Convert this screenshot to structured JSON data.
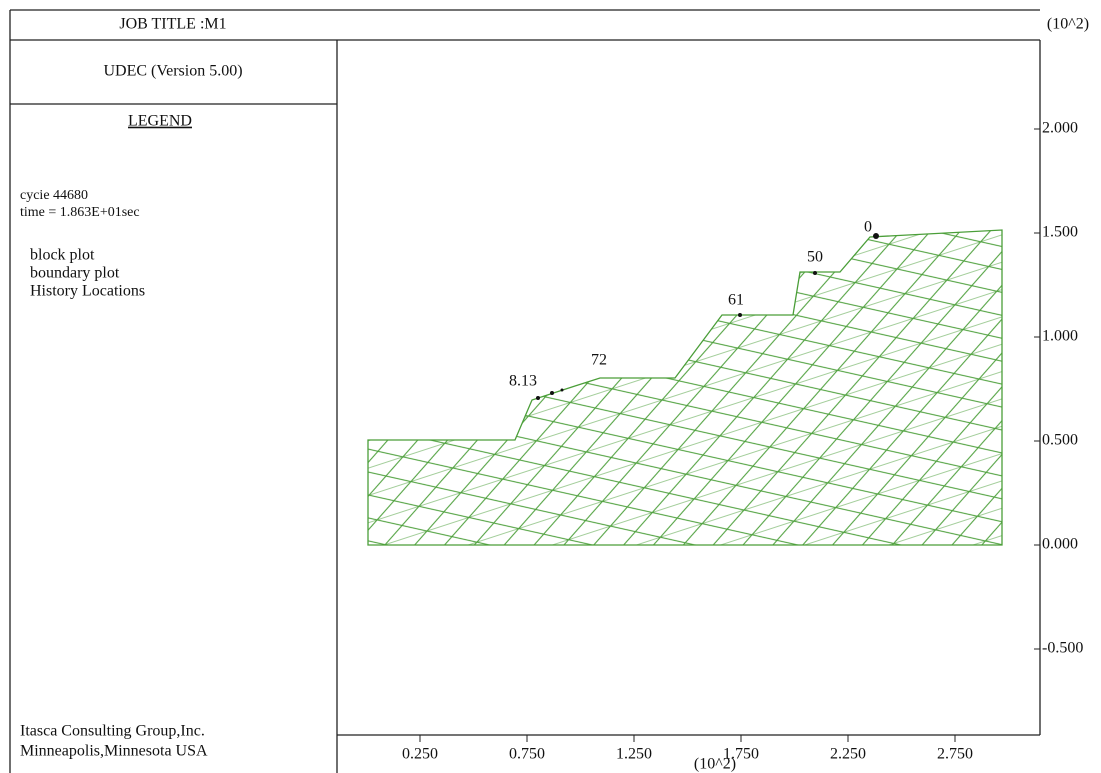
{
  "header": {
    "job_title": "JOB TITLE :M1",
    "program": "UDEC (Version 5.00)"
  },
  "legend": {
    "title": "LEGEND",
    "cycle": "cycie  44680",
    "time": "time = 1.863E+01sec",
    "items": [
      "block plot",
      "boundary plot",
      "History Locations"
    ]
  },
  "footer": [
    "Itasca Consulting Group,Inc.",
    "Minneapolis,Minnesota USA"
  ],
  "plot": {
    "x_unit": "(10^2)",
    "y_unit": "(10^2)",
    "xticks": [
      {
        "value": 0.25,
        "label": "0.250"
      },
      {
        "value": 0.75,
        "label": "0.750"
      },
      {
        "value": 1.25,
        "label": "1.250"
      },
      {
        "value": 1.75,
        "label": "1.750"
      },
      {
        "value": 2.25,
        "label": "2.250"
      },
      {
        "value": 2.75,
        "label": "2.750"
      }
    ],
    "yticks": [
      {
        "value": -0.5,
        "label": "-0.500"
      },
      {
        "value": 0,
        "label": "0.000"
      },
      {
        "value": 0.5,
        "label": "0.500"
      },
      {
        "value": 1,
        "label": "1.000"
      },
      {
        "value": 1.5,
        "label": "1.500"
      },
      {
        "value": 2,
        "label": "2.000"
      }
    ],
    "history_labels": [
      "8.13",
      "72",
      "61",
      "50",
      "0"
    ]
  }
}
